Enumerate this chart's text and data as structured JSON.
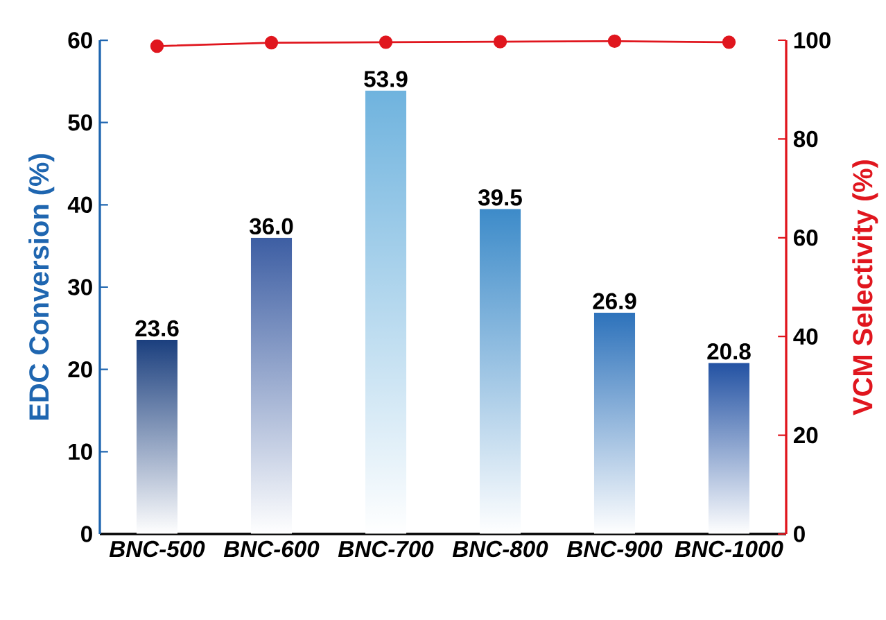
{
  "chart_data": {
    "type": "bar",
    "categories": [
      "BNC-500",
      "BNC-600",
      "BNC-700",
      "BNC-800",
      "BNC-900",
      "BNC-1000"
    ],
    "ylabel": "EDC Conversion (%)",
    "y2label": "VCM Selectivity (%)",
    "ylim": [
      0,
      60
    ],
    "yticks": [
      0,
      10,
      20,
      30,
      40,
      50,
      60
    ],
    "y2lim": [
      0,
      100
    ],
    "y2ticks": [
      0,
      20,
      40,
      60,
      80,
      100
    ],
    "series": [
      {
        "colors": [
          "#1b3f7e",
          "#3d5ea3",
          "#6fb3de",
          "#3d8bc9",
          "#2d72bb",
          "#2352a3"
        ],
        "values": [
          23.6,
          36.0,
          53.9,
          39.5,
          26.9,
          20.8
        ],
        "value_labels": [
          "23.6",
          "36.0",
          "53.9",
          "39.5",
          "26.9",
          "20.8"
        ]
      },
      {
        "type": "line",
        "axis": "y2",
        "color": "#e0161e",
        "marker": "circle",
        "values": [
          98.8,
          99.5,
          99.6,
          99.7,
          99.8,
          99.6
        ]
      }
    ]
  }
}
